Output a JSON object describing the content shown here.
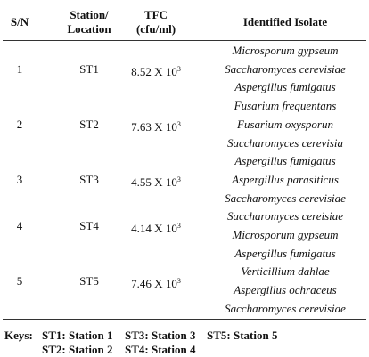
{
  "table": {
    "header": [
      [
        "S/N"
      ],
      [
        "Station/",
        "Location"
      ],
      [
        "TFC",
        "(cfu/ml)"
      ],
      [
        "Identified Isolate"
      ]
    ],
    "rows": [
      {
        "sn": "1",
        "station": "ST1",
        "tfc": {
          "base": "8.52 X 10",
          "exponent": "3"
        },
        "isolates": [
          "Microsporum gypseum",
          "Saccharomyces cerevisiae",
          "Aspergillus fumigatus"
        ]
      },
      {
        "sn": "2",
        "station": "ST2",
        "tfc": {
          "base": "7.63 X 10",
          "exponent": "3"
        },
        "isolates": [
          "Fusarium frequentans",
          "Fusarium oxysporun",
          "Saccharomyces cerevisia"
        ]
      },
      {
        "sn": "3",
        "station": "ST3",
        "tfc": {
          "base": "4.55 X 10",
          "exponent": "3"
        },
        "isolates": [
          "Aspergillus fumigatus",
          "Aspergillus parasiticus",
          "Saccharomyces cerevisiae"
        ]
      },
      {
        "sn": "4",
        "station": "ST4",
        "tfc": {
          "base": "4.14 X 10",
          "exponent": "3"
        },
        "isolates": [
          "Saccharomyces cereisiae",
          "Microsporum gypseum"
        ]
      },
      {
        "sn": "5",
        "station": "ST5",
        "tfc": {
          "base": "7.46 X 10",
          "exponent": "3"
        },
        "isolates": [
          "Aspergillus fumigatus",
          "Verticillium dahlae",
          "Aspergillus ochraceus",
          "Saccharomyces cerevisiae"
        ]
      }
    ]
  },
  "keys": {
    "label": "Keys:",
    "items": [
      "ST1: Station 1",
      "ST2: Station 2",
      "ST3: Station 3",
      "ST4: Station 4",
      "ST5: Station 5"
    ]
  }
}
